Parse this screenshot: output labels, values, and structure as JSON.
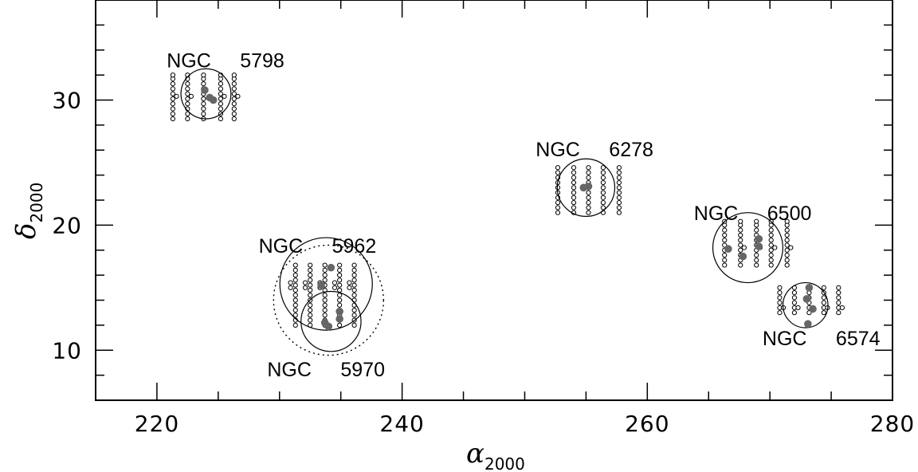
{
  "chart_data": {
    "type": "scatter",
    "title": "",
    "xlabel": "α",
    "xlabel_sub": "2000",
    "ylabel": "δ",
    "ylabel_sub": "2000",
    "xlim": [
      215,
      280
    ],
    "ylim": [
      6,
      38
    ],
    "x_ticks": [
      220,
      240,
      260,
      280
    ],
    "y_ticks": [
      10,
      20,
      30
    ],
    "x_tick_labels": [
      "220",
      "240",
      "260",
      "280"
    ],
    "y_tick_labels": [
      "10",
      "20",
      "30"
    ],
    "grid": false,
    "groups": [
      {
        "label_name": "NGC",
        "label_num": "5798",
        "label_pos": [
          220.8,
          32.6
        ],
        "circles": [
          {
            "ra": 224.0,
            "dec": 30.5,
            "radius": 2.0
          }
        ],
        "pointing_columns": [
          {
            "ra": 221.3,
            "decs": [
              28.5,
              28.9,
              29.3,
              29.7,
              30.1,
              30.5,
              30.9,
              31.3,
              31.7,
              32.0
            ]
          },
          {
            "ra": 221.6,
            "decs": [
              30.3
            ]
          },
          {
            "ra": 222.5,
            "decs": [
              28.5,
              28.9,
              29.3,
              29.7,
              30.1,
              30.5,
              30.9,
              31.3,
              31.7,
              32.0
            ]
          },
          {
            "ra": 222.8,
            "decs": [
              30.3
            ]
          },
          {
            "ra": 223.8,
            "decs": [
              28.5,
              28.9,
              29.3,
              29.7,
              30.1,
              30.5,
              30.9,
              31.3,
              31.7,
              32.0
            ]
          },
          {
            "ra": 225.2,
            "decs": [
              28.5,
              28.9,
              29.3,
              29.7,
              30.1,
              30.5,
              30.9,
              31.3,
              31.7,
              32.0
            ]
          },
          {
            "ra": 225.5,
            "decs": [
              30.3
            ]
          },
          {
            "ra": 226.3,
            "decs": [
              28.5,
              28.9,
              29.3,
              29.7,
              30.1,
              30.5,
              30.9,
              31.3,
              31.7,
              32.0
            ]
          },
          {
            "ra": 226.6,
            "decs": [
              30.3
            ]
          }
        ],
        "galaxies": [
          {
            "ra": 223.9,
            "dec": 30.8
          },
          {
            "ra": 224.3,
            "dec": 30.2
          },
          {
            "ra": 224.6,
            "dec": 30.0
          }
        ]
      },
      {
        "label_name": "NGC",
        "label_num": "5962",
        "label_pos": [
          228.3,
          17.8
        ],
        "circles": [
          {
            "ra": 233.8,
            "dec": 15.3,
            "radius": 3.7
          }
        ],
        "pointing_columns": [
          {
            "ra": 230.9,
            "decs": [
              15.0,
              15.4
            ]
          },
          {
            "ra": 231.3,
            "decs": [
              12.0,
              12.4,
              12.8,
              13.2,
              13.6,
              14.0,
              14.4,
              14.8,
              15.2,
              15.6,
              16.0,
              16.4,
              16.8
            ]
          },
          {
            "ra": 232.1,
            "decs": [
              15.0,
              15.4
            ]
          },
          {
            "ra": 232.5,
            "decs": [
              12.0,
              12.4,
              12.8,
              13.2,
              13.6,
              14.0,
              14.4,
              14.8,
              15.2,
              15.6,
              16.0,
              16.4,
              16.8
            ]
          },
          {
            "ra": 233.3,
            "decs": [
              15.0,
              15.4
            ]
          },
          {
            "ra": 233.7,
            "decs": [
              12.0,
              12.4,
              12.8,
              13.2,
              13.6,
              14.0,
              14.4,
              14.8,
              15.2,
              15.6,
              16.0,
              16.4,
              16.8
            ]
          },
          {
            "ra": 234.5,
            "decs": [
              15.0,
              15.4
            ]
          },
          {
            "ra": 234.9,
            "decs": [
              12.0,
              12.4,
              12.8,
              13.2,
              13.6,
              14.0,
              14.4,
              14.8,
              15.2,
              15.6,
              16.0,
              16.4,
              16.8
            ]
          },
          {
            "ra": 235.7,
            "decs": [
              15.0,
              15.4
            ]
          },
          {
            "ra": 236.1,
            "decs": [
              12.0,
              12.4,
              12.8,
              13.2,
              13.6,
              14.0,
              14.4,
              14.8,
              15.2,
              15.6,
              16.0,
              16.4,
              16.8
            ]
          }
        ],
        "galaxies": [
          {
            "ra": 234.2,
            "dec": 16.6
          },
          {
            "ra": 233.4,
            "dec": 15.2
          }
        ]
      },
      {
        "label_name": "NGC",
        "label_num": "5970",
        "label_pos": [
          229.0,
          7.9
        ],
        "circles": [
          {
            "ra": 234.2,
            "dec": 12.3,
            "radius": 2.4
          }
        ],
        "dashed_circles": [
          {
            "ra": 234.0,
            "dec": 14.0,
            "radius": 4.4
          }
        ],
        "pointing_columns": [],
        "galaxies": [
          {
            "ra": 234.0,
            "dec": 11.9
          },
          {
            "ra": 233.7,
            "dec": 12.2
          },
          {
            "ra": 234.9,
            "dec": 12.5
          },
          {
            "ra": 234.9,
            "dec": 13.1
          }
        ]
      },
      {
        "label_name": "NGC",
        "label_num": "6278",
        "label_pos": [
          250.9,
          25.5
        ],
        "circles": [
          {
            "ra": 255.0,
            "dec": 23.0,
            "radius": 2.3
          }
        ],
        "pointing_columns": [
          {
            "ra": 252.7,
            "decs": [
              21.0,
              21.4,
              21.8,
              22.2,
              22.6,
              23.0,
              23.4,
              23.8,
              24.2,
              24.6
            ]
          },
          {
            "ra": 254.0,
            "decs": [
              21.0,
              21.4,
              21.8,
              22.2,
              22.6,
              23.0,
              23.4,
              23.8,
              24.2,
              24.6
            ]
          },
          {
            "ra": 255.2,
            "decs": [
              21.0,
              21.4,
              21.8,
              22.2,
              22.6,
              23.0,
              23.4,
              23.8,
              24.2,
              24.6
            ]
          },
          {
            "ra": 256.4,
            "decs": [
              21.0,
              21.4,
              21.8,
              22.2,
              22.6,
              23.0,
              23.4,
              23.8,
              24.2,
              24.6
            ]
          },
          {
            "ra": 257.7,
            "decs": [
              21.0,
              21.4,
              21.8,
              22.2,
              22.6,
              23.0,
              23.4,
              23.8,
              24.2,
              24.6
            ]
          }
        ],
        "galaxies": [
          {
            "ra": 254.8,
            "dec": 23.0
          },
          {
            "ra": 255.2,
            "dec": 23.1
          }
        ]
      },
      {
        "label_name": "NGC",
        "label_num": "6500",
        "label_pos": [
          263.8,
          20.4
        ],
        "circles": [
          {
            "ra": 268.2,
            "dec": 18.2,
            "radius": 2.8
          }
        ],
        "pointing_columns": [
          {
            "ra": 266.3,
            "decs": [
              16.8,
              17.2,
              17.6,
              18.0,
              18.4,
              18.8,
              19.2,
              19.6,
              20.0,
              20.3
            ]
          },
          {
            "ra": 266.6,
            "decs": [
              18.2
            ]
          },
          {
            "ra": 267.6,
            "decs": [
              16.8,
              17.2,
              17.6,
              18.0,
              18.4,
              18.8,
              19.2,
              19.6,
              20.0,
              20.3
            ]
          },
          {
            "ra": 267.9,
            "decs": [
              18.2
            ]
          },
          {
            "ra": 268.9,
            "decs": [
              16.8,
              17.2,
              17.6,
              18.0,
              18.4,
              18.8,
              19.2,
              19.6,
              20.0,
              20.3
            ]
          },
          {
            "ra": 269.2,
            "decs": [
              18.2
            ]
          },
          {
            "ra": 270.1,
            "decs": [
              16.8,
              17.2,
              17.6,
              18.0,
              18.4,
              18.8,
              19.2,
              19.6,
              20.0,
              20.3
            ]
          },
          {
            "ra": 270.4,
            "decs": [
              18.2
            ]
          },
          {
            "ra": 271.4,
            "decs": [
              16.8,
              17.2,
              17.6,
              18.0,
              18.4,
              18.8,
              19.2,
              19.6,
              20.0,
              20.3
            ]
          },
          {
            "ra": 271.7,
            "decs": [
              18.2
            ]
          }
        ],
        "galaxies": [
          {
            "ra": 266.6,
            "dec": 18.1
          },
          {
            "ra": 267.8,
            "dec": 17.5
          },
          {
            "ra": 269.1,
            "dec": 18.3
          },
          {
            "ra": 269.1,
            "dec": 18.9
          }
        ]
      },
      {
        "label_name": "NGC",
        "label_num": "6574",
        "label_pos": [
          269.4,
          10.4
        ],
        "circles": [
          {
            "ra": 272.9,
            "dec": 13.6,
            "radius": 1.8
          }
        ],
        "pointing_columns": [
          {
            "ra": 270.8,
            "decs": [
              13.0,
              13.4,
              13.8,
              14.2,
              14.6,
              15.0
            ]
          },
          {
            "ra": 271.1,
            "decs": [
              13.4
            ]
          },
          {
            "ra": 272.0,
            "decs": [
              13.0,
              13.4,
              13.8,
              14.2,
              14.6,
              15.0
            ]
          },
          {
            "ra": 272.3,
            "decs": [
              13.4
            ]
          },
          {
            "ra": 273.2,
            "decs": [
              13.0,
              13.4,
              13.8,
              14.2,
              14.6,
              15.0
            ]
          },
          {
            "ra": 273.5,
            "decs": [
              13.4
            ]
          },
          {
            "ra": 274.4,
            "decs": [
              13.0,
              13.4,
              13.8,
              14.2,
              14.6,
              15.0
            ]
          },
          {
            "ra": 274.7,
            "decs": [
              13.4
            ]
          },
          {
            "ra": 275.6,
            "decs": [
              13.0,
              13.4,
              13.8,
              14.2,
              14.6,
              15.0
            ]
          },
          {
            "ra": 275.9,
            "decs": [
              13.4
            ]
          }
        ],
        "galaxies": [
          {
            "ra": 273.2,
            "dec": 15.0
          },
          {
            "ra": 273.0,
            "dec": 14.1
          },
          {
            "ra": 273.5,
            "dec": 13.3
          },
          {
            "ra": 273.1,
            "dec": 12.1
          }
        ]
      }
    ]
  }
}
